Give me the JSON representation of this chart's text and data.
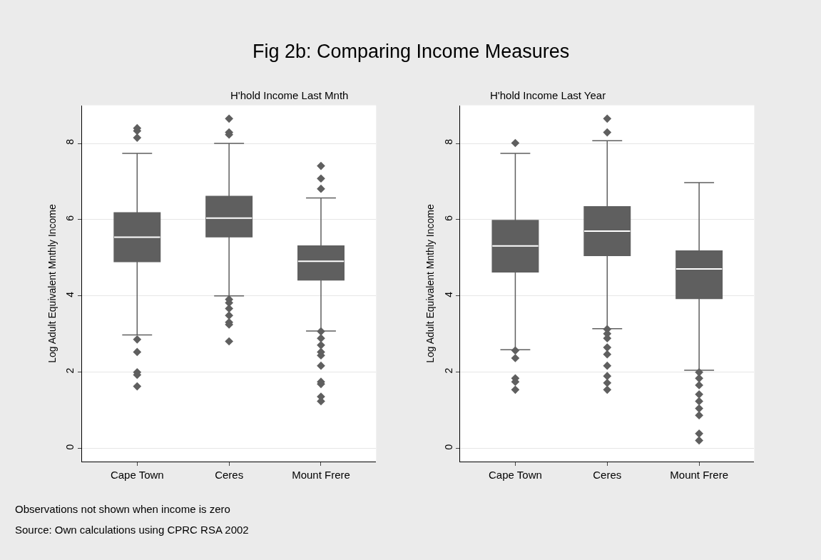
{
  "chart_data": [
    {
      "type": "box",
      "title": "Fig 2b: Comparing Income Measures",
      "subtitle": "H'hold Income Last Mnth",
      "ylabel": "Log Adult Equivalent Mnthly Income",
      "categories": [
        "Cape Town",
        "Ceres",
        "Mount Frere"
      ],
      "color": "#5f5f5f",
      "marker": "diamond",
      "grid": "y",
      "ylim": [
        -0.35,
        9.0
      ],
      "yticks": [
        0,
        2,
        4,
        6,
        8
      ],
      "boxes": [
        {
          "low": 2.98,
          "q1": 4.9,
          "median": 5.54,
          "q3": 6.18,
          "high": 7.74,
          "outliers": [
            8.15,
            8.33,
            8.4,
            2.86,
            2.53,
            2.0,
            1.93,
            1.63
          ]
        },
        {
          "low": 4.0,
          "q1": 5.55,
          "median": 6.04,
          "q3": 6.61,
          "high": 8.0,
          "outliers": [
            8.65,
            8.29,
            8.23,
            3.91,
            3.82,
            3.67,
            3.49,
            3.31,
            3.25,
            2.81
          ]
        },
        {
          "low": 3.08,
          "q1": 4.42,
          "median": 4.91,
          "q3": 5.31,
          "high": 6.57,
          "outliers": [
            7.41,
            7.08,
            6.81,
            3.07,
            2.89,
            2.71,
            2.53,
            2.44,
            2.17,
            1.75,
            1.69,
            1.36,
            1.24
          ]
        }
      ],
      "annotations": [
        "Observations not shown when income is zero",
        "Source: Own calculations using CPRC RSA 2002"
      ]
    },
    {
      "type": "box",
      "subtitle": "H'hold Income Last Year",
      "ylabel": "Log Adult Equivalent Mnthly Income",
      "categories": [
        "Cape Town",
        "Ceres",
        "Mount Frere"
      ],
      "color": "#5f5f5f",
      "marker": "diamond",
      "grid": "y",
      "ylim": [
        -0.35,
        9.0
      ],
      "yticks": [
        0,
        2,
        4,
        6,
        8
      ],
      "boxes": [
        {
          "low": 2.59,
          "q1": 4.63,
          "median": 5.31,
          "q3": 5.98,
          "high": 7.74,
          "outliers": [
            8.01,
            2.57,
            2.37,
            1.84,
            1.75,
            1.54
          ]
        },
        {
          "low": 3.14,
          "q1": 5.06,
          "median": 5.7,
          "q3": 6.34,
          "high": 8.07,
          "outliers": [
            8.65,
            8.29,
            3.13,
            3.01,
            2.89,
            2.65,
            2.47,
            2.17,
            1.9,
            1.72,
            1.54
          ]
        },
        {
          "low": 2.05,
          "q1": 3.93,
          "median": 4.71,
          "q3": 5.18,
          "high": 6.97,
          "outliers": [
            2.0,
            1.84,
            1.66,
            1.42,
            1.24,
            1.05,
            0.87,
            0.39,
            0.21
          ]
        }
      ]
    }
  ]
}
